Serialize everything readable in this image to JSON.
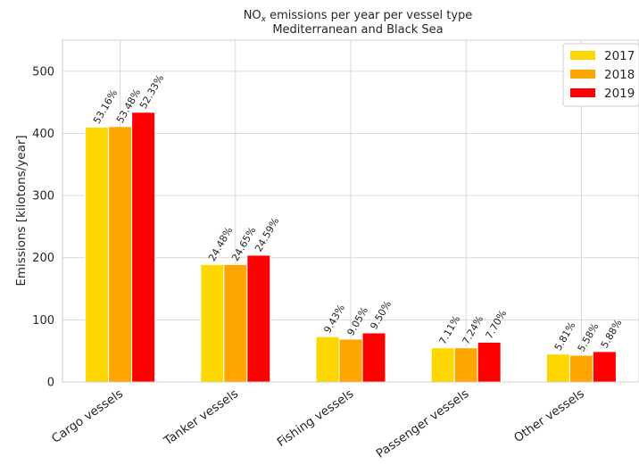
{
  "chart_data": {
    "type": "bar",
    "title_line1_main": "NO",
    "title_line1_sub": "x",
    "title_line1_rest": " emissions per year per vessel type",
    "title_line2": "Mediterranean and Black Sea",
    "ylabel": "Emissions [kilotons/year]",
    "xlabel": "",
    "ylim": [
      0,
      550
    ],
    "yticks": [
      "0",
      "100",
      "200",
      "300",
      "400",
      "500"
    ],
    "ytick_values": [
      0,
      100,
      200,
      300,
      400,
      500
    ],
    "grid": true,
    "legend_position": "top-right",
    "categories": [
      "Cargo vessels",
      "Tanker vessels",
      "Fishing vessels",
      "Passenger vessels",
      "Other vessels"
    ],
    "series": [
      {
        "name": "2017",
        "color": "#FFD700",
        "values": [
          410,
          189,
          73,
          55,
          45
        ],
        "labels": [
          "53.16%",
          "24.48%",
          "9.43%",
          "7.11%",
          "5.81%"
        ]
      },
      {
        "name": "2018",
        "color": "#FFA500",
        "values": [
          411,
          189,
          69,
          55,
          43
        ],
        "labels": [
          "53.48%",
          "24.65%",
          "9.05%",
          "7.24%",
          "5.58%"
        ]
      },
      {
        "name": "2019",
        "color": "#FF0000",
        "values": [
          434,
          204,
          79,
          64,
          49
        ],
        "labels": [
          "52.33%",
          "24.59%",
          "9.50%",
          "7.70%",
          "5.88%"
        ]
      }
    ]
  }
}
